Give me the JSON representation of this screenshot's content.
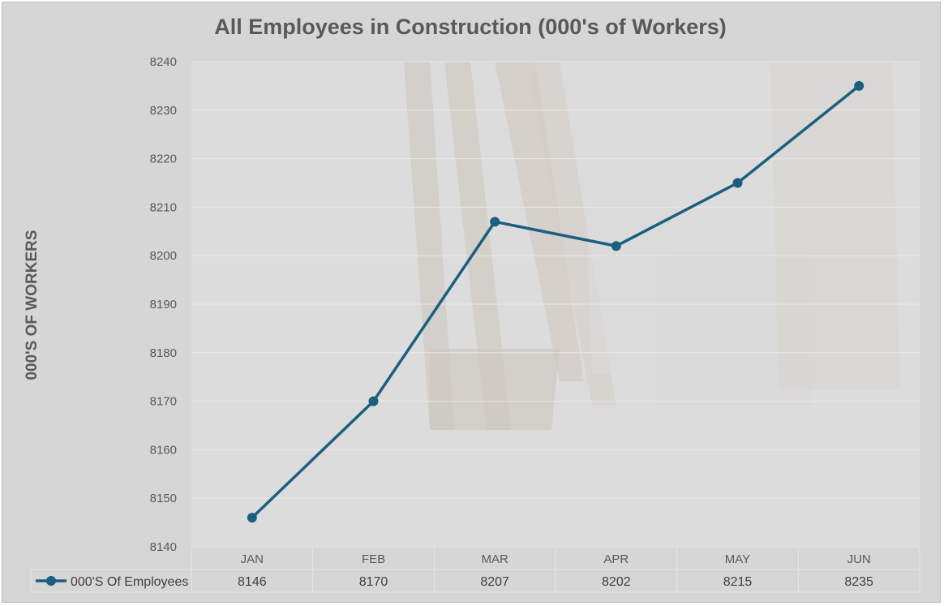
{
  "chart_data": {
    "type": "line",
    "title": "All Employees in Construction (000's of Workers)",
    "ylabel": "000'S OF WORKERS",
    "xlabel": "",
    "categories": [
      "JAN",
      "FEB",
      "MAR",
      "APR",
      "MAY",
      "JUN"
    ],
    "ylim": [
      8140,
      8240
    ],
    "yticks": [
      8140,
      8150,
      8160,
      8170,
      8180,
      8190,
      8200,
      8210,
      8220,
      8230,
      8240
    ],
    "grid": true,
    "legend": "data-table-left",
    "series": [
      {
        "name": "000'S Of Employees",
        "values": [
          8146,
          8170,
          8207,
          8202,
          8215,
          8235
        ],
        "color": "#1b5f80"
      }
    ]
  }
}
